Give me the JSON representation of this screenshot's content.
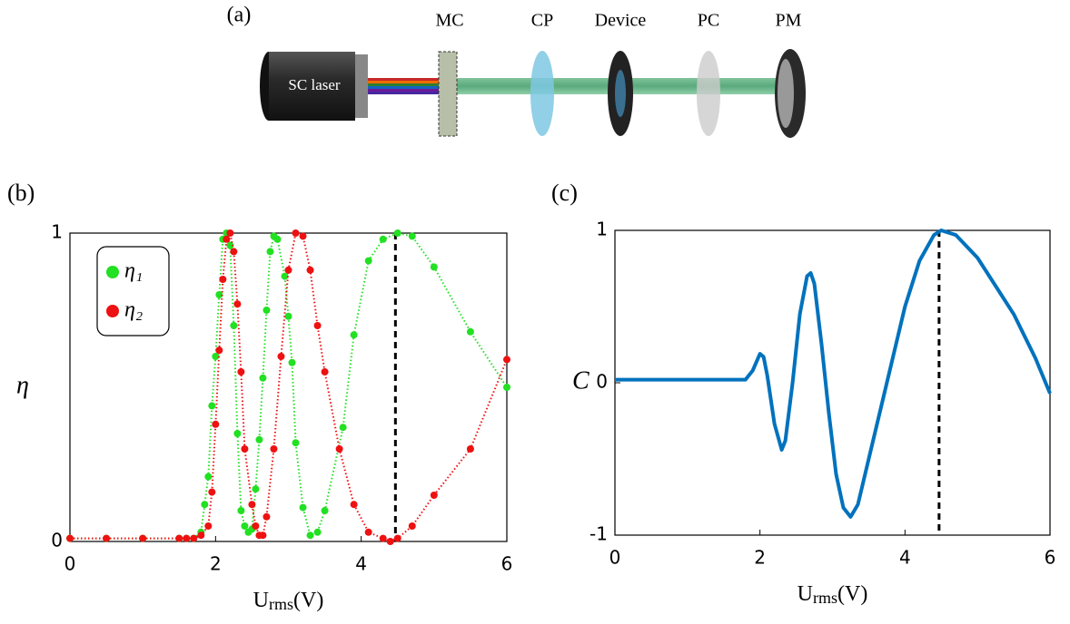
{
  "schematic": {
    "panel_label": "(a)",
    "source": "SC laser",
    "labels": [
      "MC",
      "CP",
      "Device",
      "PC",
      "PM"
    ]
  },
  "chart_data": [
    {
      "type": "scatter-line",
      "panel_label": "(b)",
      "y_label": "η",
      "x_label": "U",
      "x_label_sub": "rms",
      "x_label_unit": "(V)",
      "xlim": [
        0,
        6
      ],
      "xticks": [
        0,
        2,
        4,
        6
      ],
      "ylim": [
        0,
        1
      ],
      "yticks": [
        0,
        1
      ],
      "marker_x": 4.47,
      "series": [
        {
          "name": "η₁",
          "color": "#22e022",
          "x": [
            0,
            0.5,
            1,
            1.5,
            1.6,
            1.7,
            1.8,
            1.85,
            1.9,
            1.95,
            2.0,
            2.05,
            2.1,
            2.15,
            2.2,
            2.25,
            2.3,
            2.35,
            2.4,
            2.45,
            2.5,
            2.55,
            2.6,
            2.65,
            2.7,
            2.75,
            2.8,
            2.85,
            2.95,
            3.0,
            3.05,
            3.1,
            3.2,
            3.3,
            3.4,
            3.5,
            3.75,
            3.9,
            4.1,
            4.3,
            4.5,
            4.7,
            5.0,
            5.5,
            6.0
          ],
          "values": [
            0.01,
            0.01,
            0.01,
            0.01,
            0.01,
            0.01,
            0.03,
            0.12,
            0.21,
            0.44,
            0.6,
            0.8,
            0.98,
            1.0,
            0.96,
            0.7,
            0.35,
            0.1,
            0.05,
            0.03,
            0.04,
            0.17,
            0.33,
            0.53,
            0.75,
            0.94,
            0.99,
            0.98,
            0.86,
            0.73,
            0.58,
            0.32,
            0.11,
            0.02,
            0.03,
            0.1,
            0.37,
            0.67,
            0.91,
            0.98,
            1.0,
            0.99,
            0.89,
            0.68,
            0.5
          ]
        },
        {
          "name": "η₂",
          "color": "#ee1111",
          "x": [
            0,
            0.5,
            1,
            1.5,
            1.6,
            1.7,
            1.8,
            1.9,
            1.95,
            2.0,
            2.05,
            2.1,
            2.15,
            2.2,
            2.25,
            2.3,
            2.35,
            2.4,
            2.5,
            2.55,
            2.6,
            2.65,
            2.7,
            2.8,
            2.9,
            3.0,
            3.1,
            3.2,
            3.3,
            3.4,
            3.5,
            3.7,
            3.9,
            4.1,
            4.3,
            4.4,
            4.5,
            4.7,
            5.0,
            5.5,
            6.0
          ],
          "values": [
            0.01,
            0.01,
            0.01,
            0.01,
            0.01,
            0.01,
            0.02,
            0.05,
            0.16,
            0.38,
            0.62,
            0.85,
            0.98,
            1.0,
            0.94,
            0.77,
            0.55,
            0.3,
            0.12,
            0.05,
            0.02,
            0.02,
            0.08,
            0.3,
            0.6,
            0.88,
            1.0,
            0.99,
            0.88,
            0.7,
            0.55,
            0.3,
            0.12,
            0.03,
            0.01,
            0.0,
            0.01,
            0.05,
            0.15,
            0.3,
            0.59
          ]
        }
      ]
    },
    {
      "type": "line",
      "panel_label": "(c)",
      "y_label": "C",
      "x_label": "U",
      "x_label_sub": "rms",
      "x_label_unit": "(V)",
      "xlim": [
        0,
        6
      ],
      "xticks": [
        0,
        2,
        4,
        6
      ],
      "ylim": [
        -1,
        1
      ],
      "yticks": [
        -1,
        0,
        1
      ],
      "marker_x": 4.47,
      "series": [
        {
          "color": "#0072bd",
          "x": [
            0,
            0.5,
            1,
            1.5,
            1.8,
            1.9,
            2.0,
            2.05,
            2.1,
            2.2,
            2.3,
            2.35,
            2.45,
            2.55,
            2.65,
            2.7,
            2.75,
            2.85,
            2.95,
            3.05,
            3.15,
            3.25,
            3.35,
            3.5,
            3.75,
            4.0,
            4.2,
            4.4,
            4.5,
            4.7,
            5.0,
            5.5,
            5.8,
            6.0
          ],
          "values": [
            0.02,
            0.02,
            0.02,
            0.02,
            0.02,
            0.08,
            0.19,
            0.17,
            0.05,
            -0.27,
            -0.44,
            -0.38,
            0.0,
            0.45,
            0.7,
            0.72,
            0.65,
            0.25,
            -0.2,
            -0.6,
            -0.82,
            -0.88,
            -0.8,
            -0.5,
            0.0,
            0.5,
            0.8,
            0.97,
            1.0,
            0.97,
            0.82,
            0.45,
            0.16,
            -0.07
          ]
        }
      ]
    }
  ]
}
